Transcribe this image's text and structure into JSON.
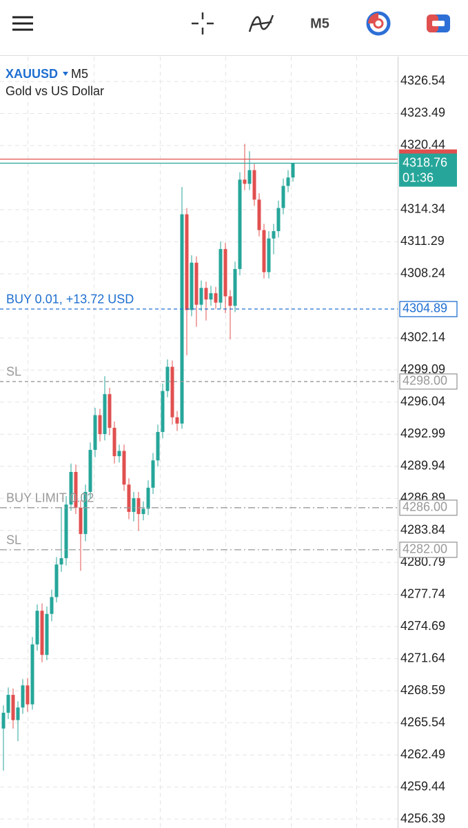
{
  "toolbar": {
    "timeframe": "M5"
  },
  "chart_data": {
    "type": "candlestick",
    "symbol": "XAUUSD",
    "timeframe": "M5",
    "description": "Gold vs US Dollar",
    "up_color": "#26a69a",
    "down_color": "#e0504f",
    "grid": true,
    "ylim": [
      4255.54,
      4328.9
    ],
    "yticks": [
      4326.54,
      4323.49,
      4320.44,
      4314.34,
      4311.29,
      4308.24,
      4302.14,
      4299.09,
      4296.04,
      4292.99,
      4289.94,
      4286.89,
      4283.84,
      4280.79,
      4277.74,
      4274.69,
      4271.64,
      4268.59,
      4265.54,
      4262.49,
      4259.44,
      4256.39
    ],
    "open": [
      4265.0,
      4266.5,
      4268.2,
      4265.8,
      4267.0,
      4269.1,
      4267.3,
      4273.0,
      4276.2,
      4272.0,
      4275.9,
      4277.5,
      4280.6,
      4281.2,
      4286.3,
      4289.4,
      4286.0,
      4283.5,
      4287.5,
      4291.5,
      4294.8,
      4293.0,
      4296.8,
      4293.6,
      4290.9,
      4291.4,
      4288.2,
      4285.6,
      4286.9,
      4285.4,
      4285.9,
      4287.9,
      4290.5,
      4293.2,
      4297.1,
      4299.4,
      4294.6,
      4294.0,
      4313.9,
      4304.8,
      4309.3,
      4305.3,
      4306.9,
      4305.8,
      4306.4,
      4305.5,
      4310.6,
      4306.1,
      4305.2,
      4308.7,
      4317.2,
      4316.8,
      4318.1,
      4315.3,
      4312.4,
      4308.4,
      4311.6,
      4312.3,
      4314.5,
      4316.6,
      4317.4
    ],
    "high": [
      4267.2,
      4268.9,
      4268.8,
      4267.6,
      4269.7,
      4269.8,
      4273.7,
      4276.8,
      4276.9,
      4276.6,
      4278.2,
      4281.3,
      4286.0,
      4287.1,
      4290.2,
      4290.1,
      4286.7,
      4288.2,
      4292.2,
      4295.5,
      4295.4,
      4298.5,
      4297.4,
      4294.2,
      4292.0,
      4292.0,
      4288.8,
      4287.5,
      4287.5,
      4286.6,
      4288.6,
      4291.2,
      4293.9,
      4297.8,
      4300.1,
      4300.0,
      4295.2,
      4316.5,
      4314.5,
      4310.0,
      4309.9,
      4307.6,
      4307.5,
      4307.1,
      4307.0,
      4311.3,
      4311.2,
      4306.7,
      4309.4,
      4317.9,
      4320.6,
      4319.9,
      4318.7,
      4315.9,
      4313.0,
      4312.3,
      4313.0,
      4315.2,
      4317.3,
      4318.1,
      4318.8
    ],
    "low": [
      4261.0,
      4265.9,
      4265.0,
      4263.8,
      4266.4,
      4266.6,
      4266.8,
      4272.4,
      4271.3,
      4271.5,
      4275.2,
      4277.0,
      4279.9,
      4280.5,
      4285.7,
      4285.4,
      4280.0,
      4282.8,
      4286.9,
      4290.8,
      4292.3,
      4292.4,
      4292.9,
      4290.2,
      4290.3,
      4287.6,
      4284.9,
      4284.7,
      4283.8,
      4284.8,
      4285.3,
      4287.3,
      4289.9,
      4292.6,
      4296.5,
      4293.9,
      4293.3,
      4293.5,
      4300.5,
      4304.2,
      4303.2,
      4304.7,
      4303.8,
      4305.2,
      4304.9,
      4304.9,
      4304.5,
      4302.0,
      4304.6,
      4308.1,
      4316.2,
      4316.2,
      4314.7,
      4311.8,
      4307.8,
      4307.8,
      4310.1,
      4311.7,
      4313.9,
      4316.0,
      4317.0
    ],
    "close": [
      4266.5,
      4268.2,
      4265.8,
      4267.0,
      4269.1,
      4267.3,
      4273.0,
      4276.2,
      4272.0,
      4275.9,
      4277.5,
      4280.6,
      4281.2,
      4286.3,
      4289.4,
      4286.0,
      4283.5,
      4287.5,
      4291.5,
      4294.8,
      4293.0,
      4296.8,
      4293.6,
      4290.9,
      4291.4,
      4288.2,
      4285.6,
      4286.9,
      4285.4,
      4285.9,
      4287.9,
      4290.5,
      4293.2,
      4297.1,
      4299.4,
      4294.6,
      4294.0,
      4313.9,
      4304.8,
      4309.3,
      4305.3,
      4306.9,
      4305.8,
      4306.4,
      4305.5,
      4310.6,
      4306.1,
      4305.2,
      4308.7,
      4317.2,
      4316.8,
      4318.1,
      4315.3,
      4312.4,
      4308.4,
      4311.6,
      4312.3,
      4314.5,
      4316.6,
      4317.4,
      4318.76
    ],
    "bid": {
      "price": 4318.76,
      "timer": "01:36",
      "color": "#26a69a"
    },
    "ask": {
      "price": 4319.15,
      "color": "#e0504f"
    },
    "orders": [
      {
        "text": "BUY 0.01,  +13.72 USD",
        "price": 4304.89,
        "color": "#1e6fd0",
        "style": "dashed"
      },
      {
        "text": "SL",
        "price": {
          "value": 4298,
          "label": "4298.00"
        },
        "color": "#999999",
        "style": "dashed"
      },
      {
        "text": "BUY LIMIT 0.02",
        "price": {
          "value": 4286,
          "label": "4286.00"
        },
        "color": "#999999",
        "style": "dashdot"
      },
      {
        "text": "SL",
        "price": {
          "value": 4282,
          "label": "4282.00"
        },
        "color": "#999999",
        "style": "dashdot"
      }
    ]
  }
}
